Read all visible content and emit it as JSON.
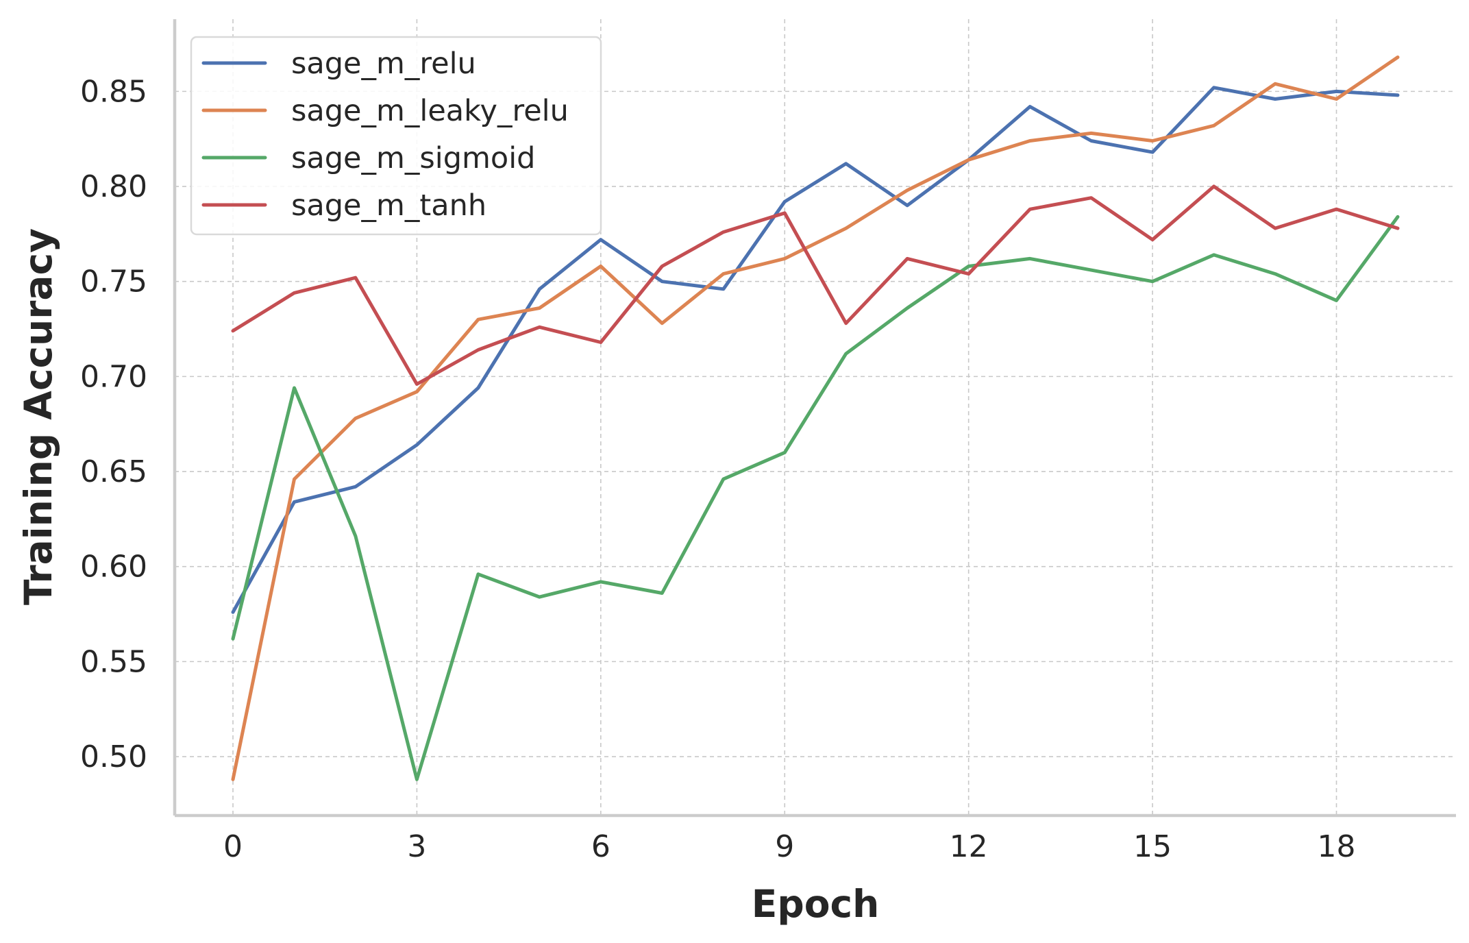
{
  "chart_data": {
    "type": "line",
    "title": "",
    "xlabel": "Epoch",
    "ylabel": "Training Accuracy",
    "xlim": [
      -0.95,
      19.95
    ],
    "ylim": [
      0.469,
      0.888
    ],
    "xticks": [
      0,
      3,
      6,
      9,
      12,
      15,
      18
    ],
    "yticks": [
      0.5,
      0.55,
      0.6,
      0.65,
      0.7,
      0.75,
      0.8,
      0.85
    ],
    "xtick_labels": [
      "0",
      "3",
      "6",
      "9",
      "12",
      "15",
      "18"
    ],
    "ytick_labels": [
      "0.50",
      "0.55",
      "0.60",
      "0.65",
      "0.70",
      "0.75",
      "0.80",
      "0.85"
    ],
    "grid": true,
    "legend_position": "top-left",
    "x": [
      0,
      1,
      2,
      3,
      4,
      5,
      6,
      7,
      8,
      9,
      10,
      11,
      12,
      13,
      14,
      15,
      16,
      17,
      18,
      19
    ],
    "series": [
      {
        "name": "sage_m_relu",
        "color": "#4c72b0",
        "values": [
          0.576,
          0.634,
          0.642,
          0.664,
          0.694,
          0.746,
          0.772,
          0.75,
          0.746,
          0.792,
          0.812,
          0.79,
          0.814,
          0.842,
          0.824,
          0.818,
          0.852,
          0.846,
          0.85,
          0.848
        ]
      },
      {
        "name": "sage_m_leaky_relu",
        "color": "#dd8452",
        "values": [
          0.488,
          0.646,
          0.678,
          0.692,
          0.73,
          0.736,
          0.758,
          0.728,
          0.754,
          0.762,
          0.778,
          0.798,
          0.814,
          0.824,
          0.828,
          0.824,
          0.832,
          0.854,
          0.846,
          0.868
        ]
      },
      {
        "name": "sage_m_sigmoid",
        "color": "#55a868",
        "values": [
          0.562,
          0.694,
          0.616,
          0.488,
          0.596,
          0.584,
          0.592,
          0.586,
          0.646,
          0.66,
          0.712,
          0.736,
          0.758,
          0.762,
          0.756,
          0.75,
          0.764,
          0.754,
          0.74,
          0.784
        ]
      },
      {
        "name": "sage_m_tanh",
        "color": "#c44e52",
        "values": [
          0.724,
          0.744,
          0.752,
          0.696,
          0.714,
          0.726,
          0.718,
          0.758,
          0.776,
          0.786,
          0.728,
          0.762,
          0.754,
          0.788,
          0.794,
          0.772,
          0.8,
          0.778,
          0.788,
          0.778
        ]
      }
    ]
  }
}
